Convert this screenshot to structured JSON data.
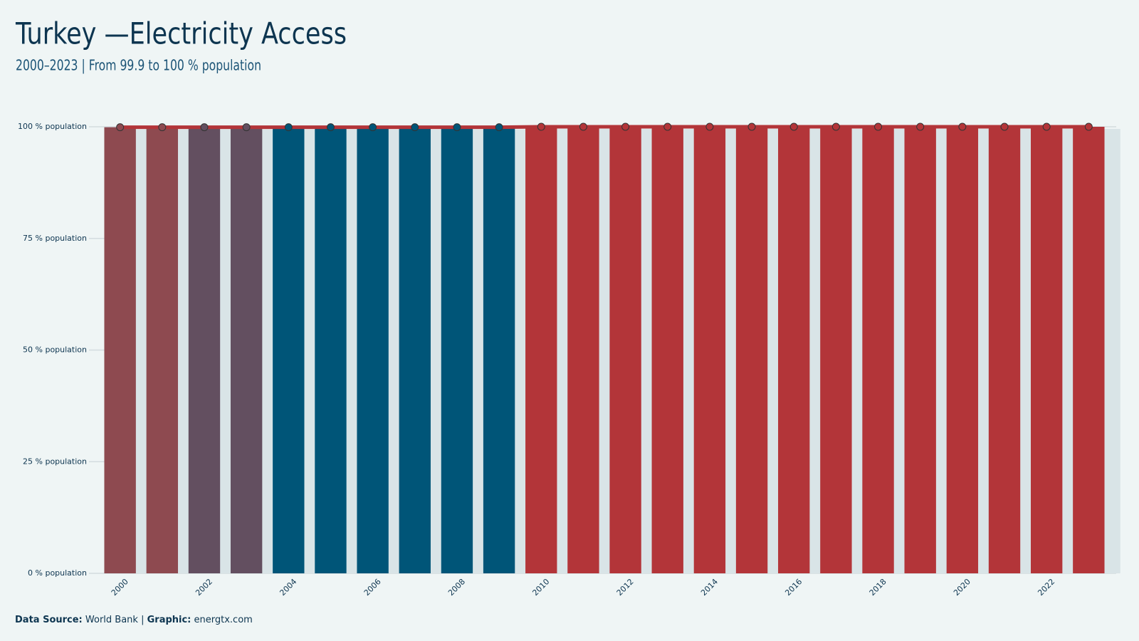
{
  "chart_data": {
    "type": "bar",
    "title": "Turkey —Electricity Access",
    "subtitle": "2000–2023 | From 99.9 to 100 % population",
    "x": [
      2000,
      2001,
      2002,
      2003,
      2004,
      2005,
      2006,
      2007,
      2008,
      2009,
      2010,
      2011,
      2012,
      2013,
      2014,
      2015,
      2016,
      2017,
      2018,
      2019,
      2020,
      2021,
      2022,
      2023
    ],
    "values": [
      99.9,
      99.9,
      99.9,
      99.9,
      99.9,
      99.9,
      99.9,
      99.9,
      99.9,
      99.9,
      100,
      100,
      100,
      100,
      100,
      100,
      100,
      100,
      100,
      100,
      100,
      100,
      100,
      100
    ],
    "colors": [
      "#8e4a50",
      "#8e4a50",
      "#634f60",
      "#634f60",
      "#005578",
      "#005578",
      "#005578",
      "#005578",
      "#005578",
      "#005578",
      "#b33539",
      "#b33539",
      "#b33539",
      "#b33539",
      "#b33539",
      "#b33539",
      "#b33539",
      "#b33539",
      "#b33539",
      "#b33539",
      "#b33539",
      "#b33539",
      "#b33539",
      "#b33539"
    ],
    "line_color": "#b33539",
    "xlim": [
      1999.6,
      2023.4
    ],
    "xticks": [
      2000,
      2002,
      2004,
      2006,
      2008,
      2010,
      2012,
      2014,
      2016,
      2018,
      2020,
      2022
    ],
    "ylim": [
      0,
      100
    ],
    "yticks": [
      {
        "value": 0,
        "label": "0 % population"
      },
      {
        "value": 25,
        "label": "25 % population"
      },
      {
        "value": 50,
        "label": "50 % population"
      },
      {
        "value": 75,
        "label": "75 % population"
      },
      {
        "value": 100,
        "label": "100 % population"
      }
    ],
    "grid": true,
    "source_label": "Data Source:",
    "source": "World Bank |",
    "graphic_label": "Graphic:",
    "graphic": "energtx.com"
  }
}
